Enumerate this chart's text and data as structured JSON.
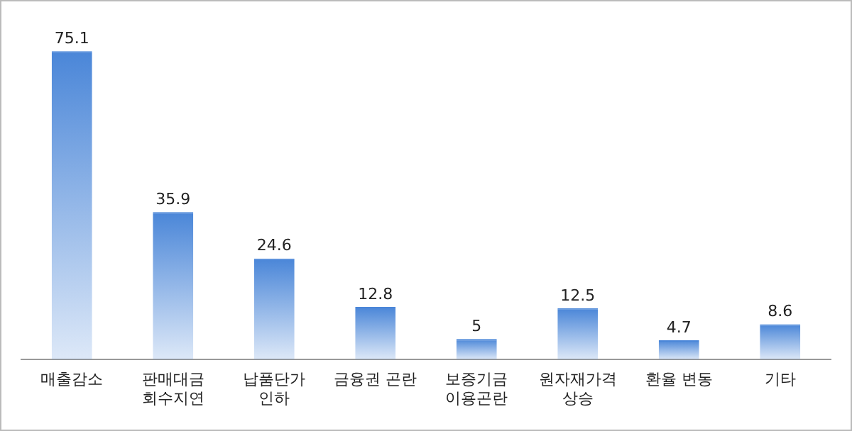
{
  "chart_data": {
    "type": "bar",
    "categories": [
      "매출감소",
      "판매대금\n회수지연",
      "납품단가\n인하",
      "금융권 곤란",
      "보증기금\n이용곤란",
      "원자재가격\n상승",
      "환율 변동",
      "기타"
    ],
    "values": [
      75.1,
      35.9,
      24.6,
      12.8,
      5,
      12.5,
      4.7,
      8.6
    ],
    "color": "#4a86d8",
    "data_labels": true,
    "grid": false,
    "legend": false
  }
}
